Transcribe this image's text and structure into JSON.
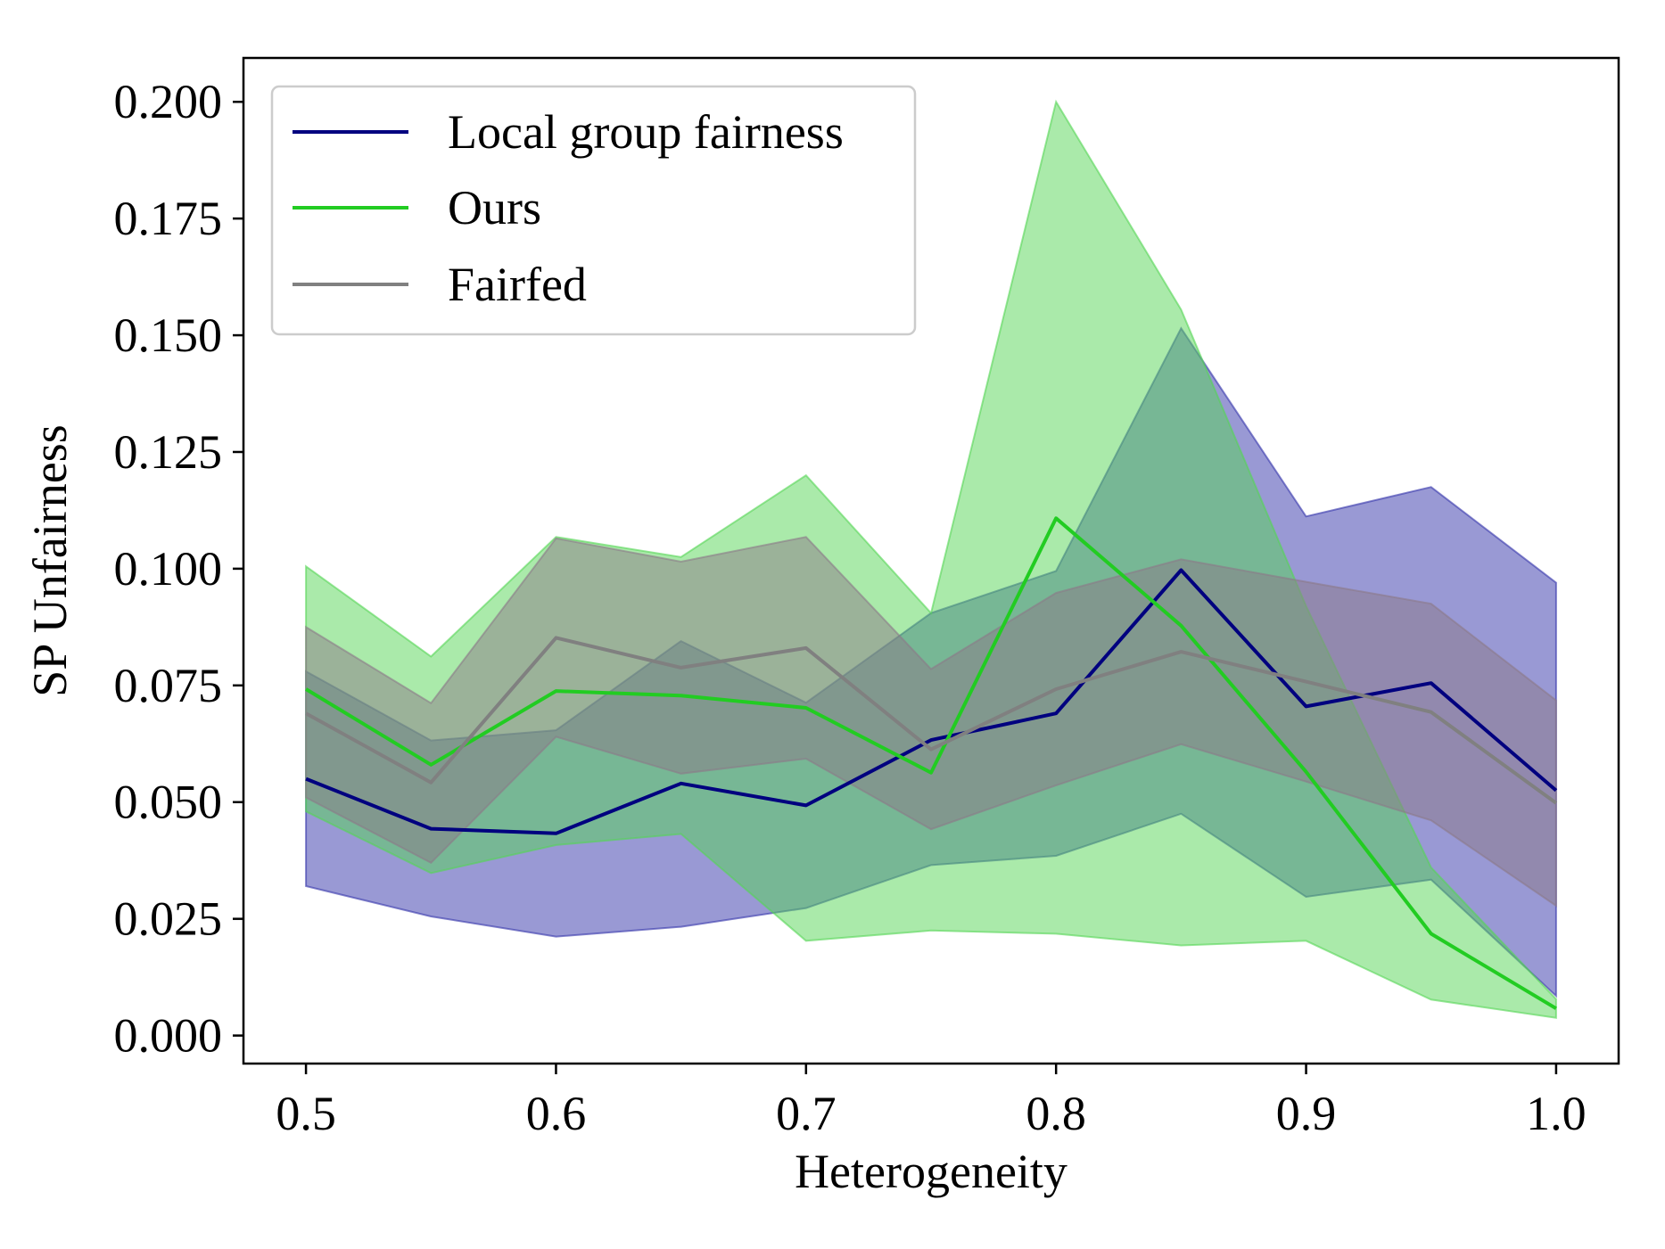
{
  "chart_data": {
    "type": "line",
    "title": "",
    "xlabel": "Heterogeneity",
    "ylabel": "SP Unfairness",
    "xlim": [
      0.475,
      1.025
    ],
    "ylim": [
      -0.006,
      0.2094
    ],
    "x": [
      0.5,
      0.55,
      0.6,
      0.65,
      0.7,
      0.75,
      0.8,
      0.85,
      0.9,
      0.95,
      1.0
    ],
    "xticks": [
      0.5,
      0.6,
      0.7,
      0.8,
      0.9,
      1.0
    ],
    "xtick_labels": [
      "0.5",
      "0.6",
      "0.7",
      "0.8",
      "0.9",
      "1.0"
    ],
    "yticks": [
      0.0,
      0.025,
      0.05,
      0.075,
      0.1,
      0.125,
      0.15,
      0.175,
      0.2
    ],
    "ytick_labels": [
      "0.000",
      "0.025",
      "0.050",
      "0.075",
      "0.100",
      "0.125",
      "0.150",
      "0.175",
      "0.200"
    ],
    "grid": false,
    "legend_position": "top-left",
    "series": [
      {
        "name": "Local group fairness",
        "color": "#00007f",
        "band_color": "#3333aa",
        "values": [
          0.055,
          0.0443,
          0.0433,
          0.054,
          0.0493,
          0.0633,
          0.069,
          0.0997,
          0.0705,
          0.0755,
          0.0525
        ],
        "upper": [
          0.078,
          0.0632,
          0.0654,
          0.0845,
          0.0713,
          0.0905,
          0.0995,
          0.1515,
          0.1112,
          0.1175,
          0.097
        ],
        "lower": [
          0.032,
          0.0255,
          0.0212,
          0.0233,
          0.0273,
          0.0365,
          0.0385,
          0.0475,
          0.0297,
          0.0334,
          0.0085
        ]
      },
      {
        "name": "Ours",
        "color": "#22cc22",
        "band_color": "#55d555",
        "values": [
          0.0742,
          0.058,
          0.0738,
          0.0728,
          0.0702,
          0.0563,
          0.1108,
          0.0878,
          0.0565,
          0.0218,
          0.0058
        ],
        "upper": [
          0.1005,
          0.0812,
          0.1068,
          0.1025,
          0.12,
          0.0905,
          0.2,
          0.1555,
          0.092,
          0.036,
          0.0078
        ],
        "lower": [
          0.048,
          0.0348,
          0.0408,
          0.0432,
          0.0203,
          0.0225,
          0.0218,
          0.0193,
          0.0203,
          0.0077,
          0.0038
        ]
      },
      {
        "name": "Fairfed",
        "color": "#808080",
        "band_color": "#8c7a88",
        "values": [
          0.069,
          0.0542,
          0.0852,
          0.0788,
          0.083,
          0.0613,
          0.0742,
          0.0822,
          0.0758,
          0.0693,
          0.0498
        ],
        "upper": [
          0.0875,
          0.0712,
          0.1065,
          0.1015,
          0.1068,
          0.0785,
          0.0948,
          0.102,
          0.0972,
          0.0925,
          0.0718
        ],
        "lower": [
          0.051,
          0.037,
          0.064,
          0.0561,
          0.0593,
          0.0442,
          0.0536,
          0.0624,
          0.0544,
          0.0461,
          0.0278
        ]
      }
    ]
  }
}
